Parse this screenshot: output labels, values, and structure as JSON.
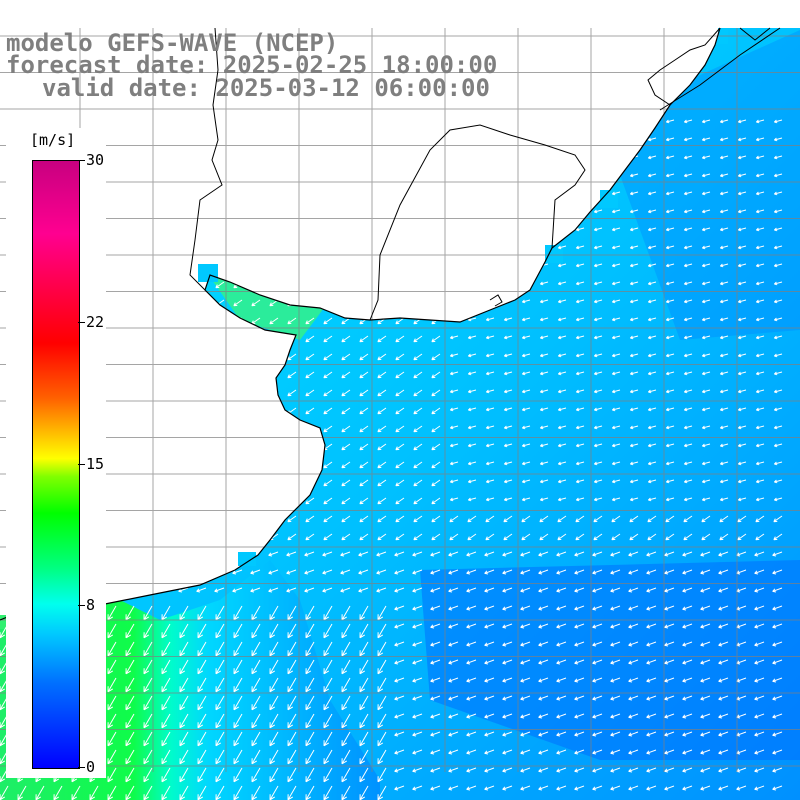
{
  "title": {
    "model": "modelo GEFS-WAVE (NCEP)",
    "forecast": "forecast date: 2025-02-25 18:00:00",
    "valid": "valid date: 2025-03-12 06:00:00"
  },
  "legend": {
    "units": "[m/s]",
    "ticks": [
      {
        "label": "30",
        "value": 30
      },
      {
        "label": "22",
        "value": 22
      },
      {
        "label": "15",
        "value": 15
      },
      {
        "label": "8",
        "value": 8
      },
      {
        "label": "0",
        "value": 0
      }
    ],
    "colors": {
      "low": "#0000ff",
      "mid": "#00ffee",
      "green": "#00ff00",
      "high": "#c80080",
      "land": "#ffffff",
      "coast": "#000000",
      "grid": "#808080",
      "arrow": "#ffffff"
    }
  },
  "field": {
    "variable": "wind speed and direction",
    "speed_range": [
      0,
      30
    ],
    "regions": [
      {
        "area": "northeast ocean",
        "speed": 5
      },
      {
        "area": "central ocean",
        "speed": 6.5
      },
      {
        "area": "near-coast west",
        "speed": 8
      },
      {
        "area": "southwest gulf",
        "speed": 12
      }
    ]
  }
}
